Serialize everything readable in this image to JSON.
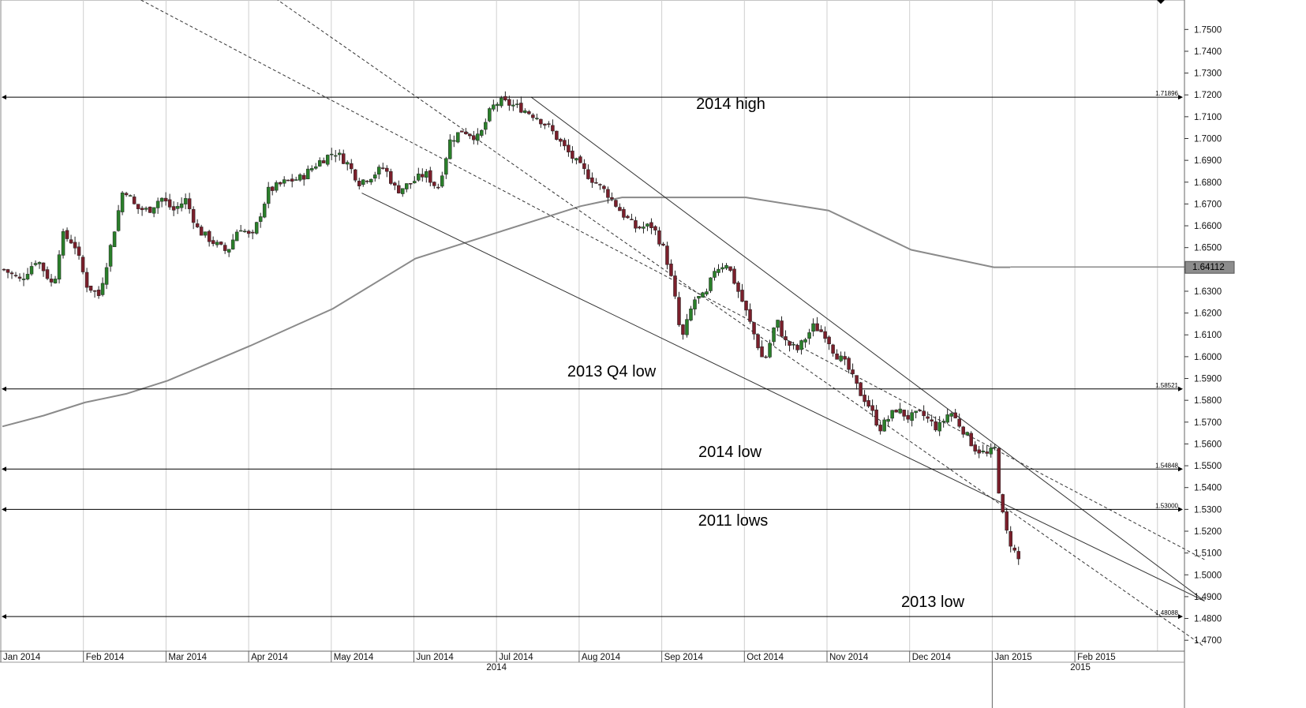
{
  "chart_data": {
    "type": "candlestick",
    "y_range": [
      1.465,
      1.7635
    ],
    "y_ticks": [
      "1.4700",
      "1.4800",
      "1.4900",
      "1.5000",
      "1.5100",
      "1.5200",
      "1.5300",
      "1.5400",
      "1.5500",
      "1.5600",
      "1.5700",
      "1.5800",
      "1.5900",
      "1.6000",
      "1.6100",
      "1.6200",
      "1.6300",
      "1.6400",
      "1.6500",
      "1.6600",
      "1.6700",
      "1.6800",
      "1.6900",
      "1.7000",
      "1.7100",
      "1.7200",
      "1.7300",
      "1.7400",
      "1.7500"
    ],
    "months": [
      "Jan 2014",
      "Feb 2014",
      "Mar 2014",
      "Apr 2014",
      "May 2014",
      "Jun 2014",
      "Jul 2014",
      "Aug 2014",
      "Sep 2014",
      "Oct 2014",
      "Nov 2014",
      "Dec 2014",
      "Jan 2015",
      "Feb 2015"
    ],
    "years": [
      "2014",
      "2015"
    ],
    "last_price": "1.64112",
    "moving_average_last": 1.64112,
    "levels": [
      {
        "value": 1.71896,
        "tag": "1.71896",
        "annotation": "2014 high"
      },
      {
        "value": 1.58521,
        "tag": "1.58521",
        "annotation": "2013 Q4 low"
      },
      {
        "value": 1.54848,
        "tag": "1.54848",
        "annotation": "2014 low"
      },
      {
        "value": 1.53,
        "tag": "1.53000",
        "annotation": "2011 lows"
      },
      {
        "value": 1.48088,
        "tag": "1.48088",
        "annotation": "2013 low"
      }
    ],
    "moving_average": [
      [
        0,
        1.568
      ],
      [
        0.5,
        1.573
      ],
      [
        1,
        1.579
      ],
      [
        1.5,
        1.583
      ],
      [
        2,
        1.589
      ],
      [
        3,
        1.605
      ],
      [
        4,
        1.622
      ],
      [
        5,
        1.645
      ],
      [
        6,
        1.657
      ],
      [
        7,
        1.669
      ],
      [
        7.5,
        1.673
      ],
      [
        8,
        1.673
      ],
      [
        9,
        1.673
      ],
      [
        10,
        1.667
      ],
      [
        11,
        1.649
      ],
      [
        12,
        1.641
      ],
      [
        14,
        1.641
      ]
    ],
    "ma_end_month": 12.2,
    "trendlines": [
      {
        "style": "solid",
        "from": [
          6.4,
          1.719
        ],
        "to": [
          14.55,
          1.488
        ]
      },
      {
        "style": "solid",
        "from": [
          4.35,
          1.675
        ],
        "to": [
          14.55,
          1.488
        ]
      },
      {
        "style": "dashed",
        "from": [
          1.5,
          1.767
        ],
        "to": [
          14.55,
          1.507
        ]
      },
      {
        "style": "dashed",
        "from": [
          3.2,
          1.767
        ],
        "to": [
          14.55,
          1.467
        ]
      }
    ],
    "anchors": [
      [
        0,
        1.64
      ],
      [
        0.2,
        1.635
      ],
      [
        0.4,
        1.645
      ],
      [
        0.6,
        1.632
      ],
      [
        0.7,
        1.656
      ],
      [
        0.85,
        1.652
      ],
      [
        1.0,
        1.633
      ],
      [
        1.15,
        1.628
      ],
      [
        1.3,
        1.652
      ],
      [
        1.45,
        1.678
      ],
      [
        1.6,
        1.668
      ],
      [
        1.75,
        1.667
      ],
      [
        1.9,
        1.673
      ],
      [
        2.05,
        1.667
      ],
      [
        2.2,
        1.672
      ],
      [
        2.35,
        1.658
      ],
      [
        2.55,
        1.652
      ],
      [
        2.7,
        1.648
      ],
      [
        2.85,
        1.66
      ],
      [
        3.0,
        1.654
      ],
      [
        3.2,
        1.676
      ],
      [
        3.4,
        1.68
      ],
      [
        3.6,
        1.682
      ],
      [
        3.8,
        1.689
      ],
      [
        4.0,
        1.694
      ],
      [
        4.15,
        1.689
      ],
      [
        4.3,
        1.68
      ],
      [
        4.45,
        1.683
      ],
      [
        4.6,
        1.687
      ],
      [
        4.75,
        1.676
      ],
      [
        4.9,
        1.679
      ],
      [
        5.1,
        1.684
      ],
      [
        5.25,
        1.677
      ],
      [
        5.4,
        1.699
      ],
      [
        5.55,
        1.704
      ],
      [
        5.75,
        1.7
      ],
      [
        5.9,
        1.714
      ],
      [
        6.0,
        1.717
      ],
      [
        6.1,
        1.716
      ],
      [
        6.25,
        1.714
      ],
      [
        6.45,
        1.71
      ],
      [
        6.6,
        1.705
      ],
      [
        6.8,
        1.695
      ],
      [
        6.95,
        1.688
      ],
      [
        7.1,
        1.682
      ],
      [
        7.3,
        1.675
      ],
      [
        7.5,
        1.665
      ],
      [
        7.65,
        1.659
      ],
      [
        7.85,
        1.66
      ],
      [
        8.0,
        1.648
      ],
      [
        8.1,
        1.632
      ],
      [
        8.2,
        1.607
      ],
      [
        8.35,
        1.626
      ],
      [
        8.5,
        1.628
      ],
      [
        8.6,
        1.64
      ],
      [
        8.75,
        1.643
      ],
      [
        8.95,
        1.624
      ],
      [
        9.1,
        1.608
      ],
      [
        9.2,
        1.597
      ],
      [
        9.35,
        1.617
      ],
      [
        9.45,
        1.607
      ],
      [
        9.6,
        1.603
      ],
      [
        9.8,
        1.614
      ],
      [
        9.95,
        1.61
      ],
      [
        10.05,
        1.602
      ],
      [
        10.2,
        1.596
      ],
      [
        10.35,
        1.584
      ],
      [
        10.45,
        1.579
      ],
      [
        10.6,
        1.567
      ],
      [
        10.8,
        1.576
      ],
      [
        10.95,
        1.572
      ],
      [
        11.1,
        1.574
      ],
      [
        11.3,
        1.567
      ],
      [
        11.45,
        1.575
      ],
      [
        11.6,
        1.567
      ],
      [
        11.75,
        1.558
      ],
      [
        11.9,
        1.555
      ],
      [
        12.0,
        1.558
      ],
      [
        12.05,
        1.535
      ],
      [
        12.12,
        1.521
      ],
      [
        12.2,
        1.513
      ],
      [
        12.28,
        1.507
      ]
    ]
  }
}
